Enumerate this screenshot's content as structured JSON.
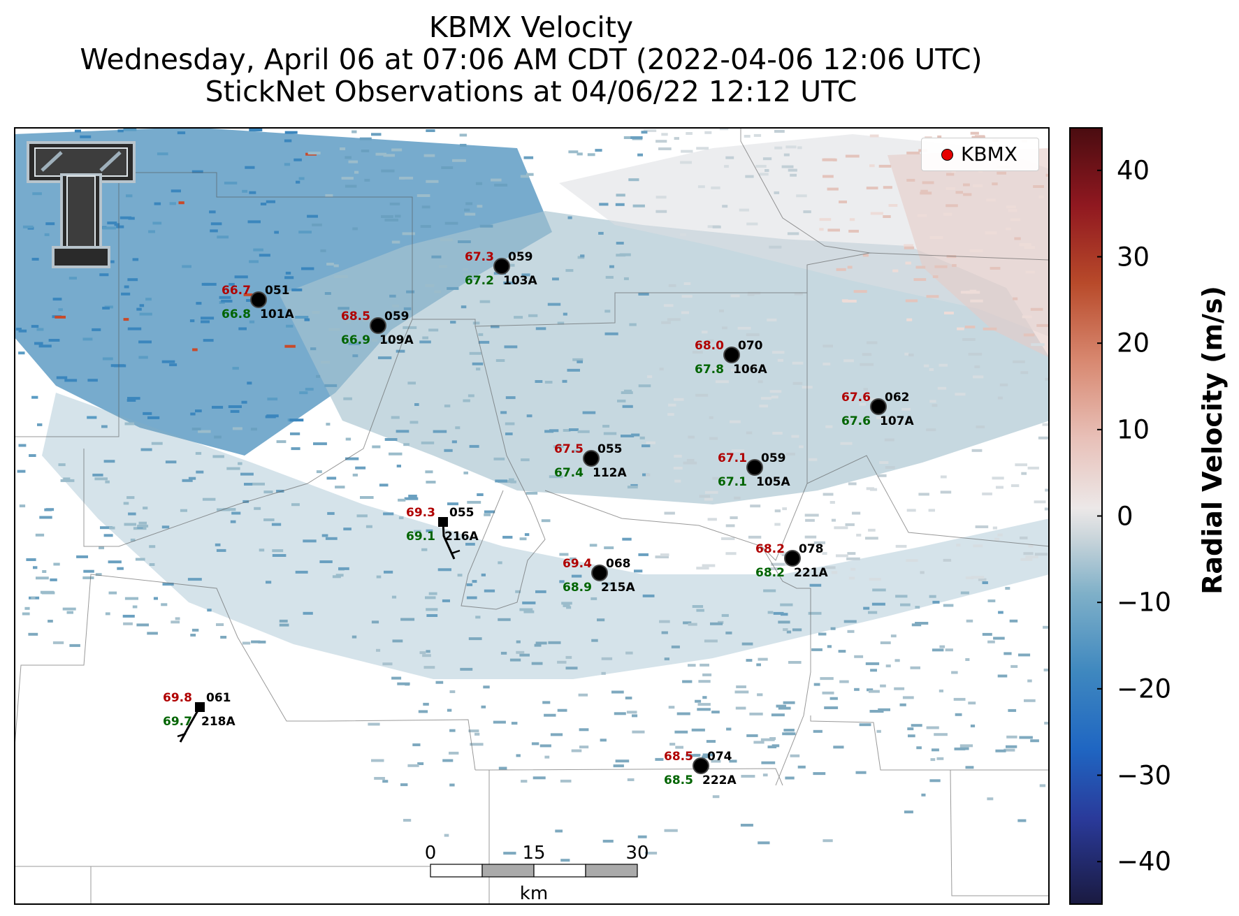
{
  "title": {
    "line1": "KBMX Velocity",
    "line2": "Wednesday, April 06 at 07:06 AM CDT (2022-04-06 12:06 UTC)",
    "line3": "StickNet Observations at 04/06/22 12:12 UTC"
  },
  "legend": {
    "label": "KBMX",
    "marker_color": "#e60000"
  },
  "colorbar": {
    "label": "Radial Velocity (m/s)",
    "ticks": [
      "40",
      "30",
      "20",
      "10",
      "0",
      "−10",
      "−20",
      "−30",
      "−40"
    ],
    "tick_values": [
      40,
      30,
      20,
      10,
      0,
      -10,
      -20,
      -30,
      -40
    ],
    "range": [
      -45,
      45
    ],
    "colors": [
      "#1a1a40",
      "#2a3a9a",
      "#1f66c2",
      "#3f88bf",
      "#7fb0c8",
      "#c8d4da",
      "#ece8e8",
      "#e8c0b8",
      "#d88870",
      "#b84a2a",
      "#901820",
      "#4a0c10"
    ]
  },
  "scale_bar": {
    "ticks": [
      "0",
      "15",
      "30"
    ],
    "unit": "km"
  },
  "logo": {
    "text": "TT"
  },
  "stations": [
    {
      "id": "051",
      "name": "101A",
      "temp": "66.7",
      "dew": "66.8",
      "marker": "circle"
    },
    {
      "id": "059",
      "name": "103A",
      "temp": "67.3",
      "dew": "67.2",
      "marker": "circle"
    },
    {
      "id": "059",
      "name": "109A",
      "temp": "68.5",
      "dew": "66.9",
      "marker": "circle"
    },
    {
      "id": "070",
      "name": "106A",
      "temp": "68.0",
      "dew": "67.8",
      "marker": "circle"
    },
    {
      "id": "062",
      "name": "107A",
      "temp": "67.6",
      "dew": "67.6",
      "marker": "circle"
    },
    {
      "id": "055",
      "name": "112A",
      "temp": "67.5",
      "dew": "67.4",
      "marker": "circle"
    },
    {
      "id": "059",
      "name": "105A",
      "temp": "67.1",
      "dew": "67.1",
      "marker": "circle"
    },
    {
      "id": "055",
      "name": "216A",
      "temp": "69.3",
      "dew": "69.1",
      "marker": "square"
    },
    {
      "id": "068",
      "name": "215A",
      "temp": "69.4",
      "dew": "68.9",
      "marker": "circle"
    },
    {
      "id": "078",
      "name": "221A",
      "temp": "68.2",
      "dew": "68.2",
      "marker": "circle"
    },
    {
      "id": "061",
      "name": "218A",
      "temp": "69.8",
      "dew": "69.7",
      "marker": "square"
    },
    {
      "id": "074",
      "name": "222A",
      "temp": "68.5",
      "dew": "68.5",
      "marker": "circle"
    }
  ]
}
